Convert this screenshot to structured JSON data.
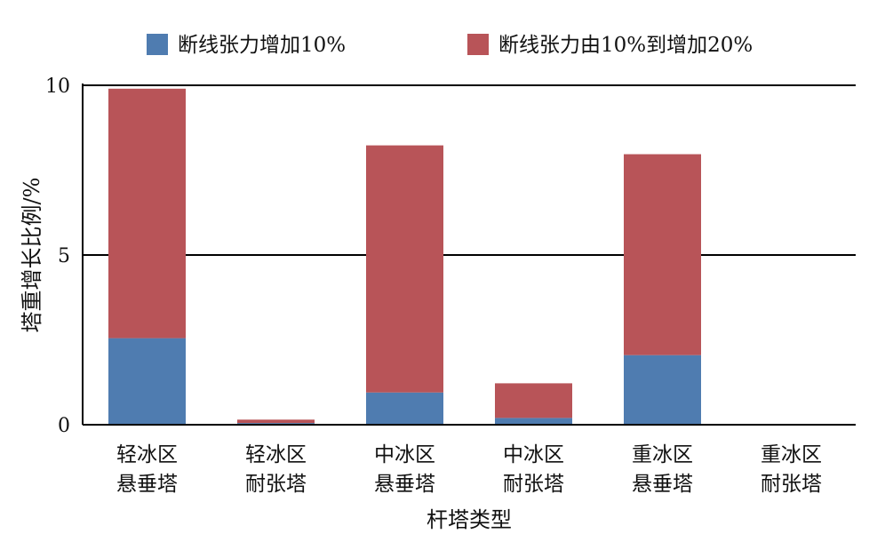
{
  "chart_data": {
    "type": "bar",
    "stacked": true,
    "xlabel": "杆塔类型",
    "ylabel": "塔重增长比例/%",
    "ylim": [
      0,
      10
    ],
    "yticks": [
      0,
      5,
      10
    ],
    "grid": true,
    "legend_position": "top",
    "categories": [
      [
        "轻冰区",
        "悬垂塔"
      ],
      [
        "轻冰区",
        "耐张塔"
      ],
      [
        "中冰区",
        "悬垂塔"
      ],
      [
        "中冰区",
        "耐张塔"
      ],
      [
        "重冰区",
        "悬垂塔"
      ],
      [
        "重冰区",
        "耐张塔"
      ]
    ],
    "series": [
      {
        "name": "断线张力增加10%",
        "color": "#4f7cb0",
        "values": [
          2.55,
          0.05,
          0.95,
          0.2,
          2.05,
          0
        ]
      },
      {
        "name": "断线张力由10%到增加20%",
        "color": "#b85458",
        "values": [
          7.35,
          0.1,
          7.28,
          1.02,
          5.92,
          0
        ]
      }
    ]
  }
}
